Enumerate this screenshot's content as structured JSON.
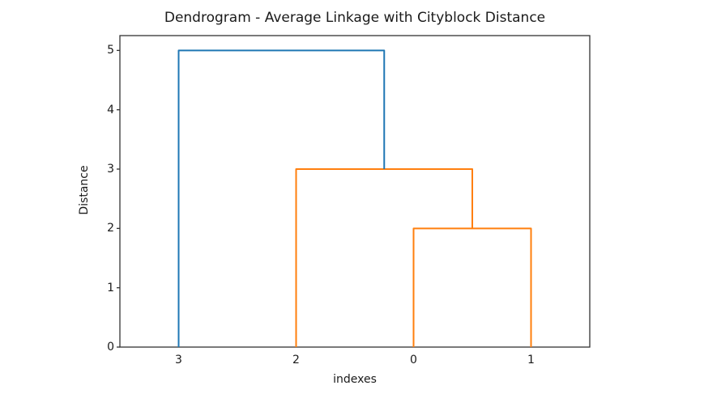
{
  "chart_data": {
    "type": "dendrogram",
    "title": "Dendrogram - Average Linkage with Cityblock Distance",
    "xlabel": "indexes",
    "ylabel": "Distance",
    "leaf_labels": [
      "3",
      "2",
      "0",
      "1"
    ],
    "leaf_x": [
      5,
      15,
      25,
      35
    ],
    "xlim": [
      0,
      40
    ],
    "ylim": [
      0,
      5.25
    ],
    "yticks": [
      0,
      1,
      2,
      3,
      4,
      5
    ],
    "grid": false,
    "legend": null,
    "merges": [
      {
        "members": "0+1",
        "distance": 2
      },
      {
        "members": "2+(0,1)",
        "distance": 3
      },
      {
        "members": "3+(2,0,1)",
        "distance": 5
      }
    ],
    "links": [
      {
        "x": [
          25,
          25,
          35,
          35
        ],
        "y": [
          0,
          2,
          2,
          0
        ],
        "color": "#ff7f0e"
      },
      {
        "x": [
          15,
          15,
          30,
          30
        ],
        "y": [
          0,
          3,
          3,
          2
        ],
        "color": "#ff7f0e"
      },
      {
        "x": [
          5,
          5,
          22.5,
          22.5
        ],
        "y": [
          0,
          5,
          5,
          3
        ],
        "color": "#1f77b4"
      }
    ],
    "colors": {
      "above_threshold_link": "#1f77b4",
      "cluster_link": "#ff7f0e",
      "axis": "#333333",
      "text": "#1a1a1a",
      "background": "#ffffff"
    }
  }
}
